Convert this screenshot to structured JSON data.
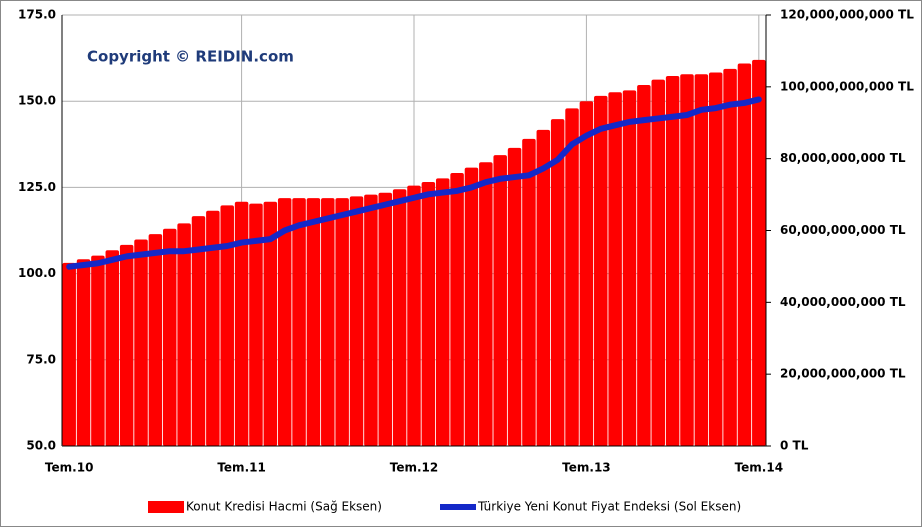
{
  "chart_data": {
    "type": "bar",
    "annotation": "Copyright © REIDIN.com",
    "categories": [
      "Tem.10",
      null,
      null,
      null,
      null,
      null,
      null,
      null,
      null,
      null,
      null,
      null,
      "Tem.11",
      null,
      null,
      null,
      null,
      null,
      null,
      null,
      null,
      null,
      null,
      null,
      "Tem.12",
      null,
      null,
      null,
      null,
      null,
      null,
      null,
      null,
      null,
      null,
      null,
      "Tem.13",
      null,
      null,
      null,
      null,
      null,
      null,
      null,
      null,
      null,
      null,
      null,
      "Tem.14"
    ],
    "series": [
      {
        "name": "Konut Kredisi Hacmi (Sağ Eksen)",
        "type": "bar",
        "axis": "y2",
        "color": "#ff0000",
        "values": [
          51000000000,
          52000000000,
          53000000000,
          54500000000,
          56000000000,
          57500000000,
          59000000000,
          60500000000,
          62000000000,
          64000000000,
          65500000000,
          67000000000,
          68000000000,
          67500000000,
          68000000000,
          69000000000,
          69000000000,
          69000000000,
          69000000000,
          69000000000,
          69500000000,
          70000000000,
          70500000000,
          71500000000,
          72500000000,
          73500000000,
          74500000000,
          76000000000,
          77500000000,
          79000000000,
          81000000000,
          83000000000,
          85500000000,
          88000000000,
          91000000000,
          94000000000,
          96000000000,
          97500000000,
          98500000000,
          99000000000,
          100500000000,
          102000000000,
          103000000000,
          103500000000,
          103500000000,
          104000000000,
          105000000000,
          106500000000,
          107500000000
        ]
      },
      {
        "name": "Türkiye Yeni Konut Fiyat Endeksi (Sol Eksen)",
        "type": "line",
        "color": "#1428c8",
        "values": [
          102,
          102.5,
          103,
          104,
          105,
          105.5,
          106,
          106.5,
          106.5,
          107,
          107.5,
          108,
          109,
          109.5,
          110,
          112.5,
          114,
          115,
          116,
          117,
          118,
          119,
          120,
          121,
          122,
          123,
          123.5,
          124,
          125,
          126.5,
          127.5,
          128,
          128.5,
          130.5,
          133,
          137.5,
          140,
          142,
          143,
          144,
          144.5,
          145,
          145.5,
          146,
          147.5,
          148,
          149,
          149.5,
          150.5
        ]
      }
    ],
    "ylim": [
      50,
      175
    ],
    "yticks": [
      {
        "value": 50,
        "label": "50.0"
      },
      {
        "value": 75,
        "label": "75.0"
      },
      {
        "value": 100,
        "label": "100.0"
      },
      {
        "value": 125,
        "label": "125.0"
      },
      {
        "value": 150,
        "label": "150.0"
      },
      {
        "value": 175,
        "label": "175.0"
      }
    ],
    "y2lim": [
      0,
      120000000000
    ],
    "y2ticks": [
      {
        "value": 0,
        "label": "0 TL"
      },
      {
        "value": 20000000000,
        "label": "20,000,000,000 TL"
      },
      {
        "value": 40000000000,
        "label": "40,000,000,000 TL"
      },
      {
        "value": 60000000000,
        "label": "60,000,000,000 TL"
      },
      {
        "value": 80000000000,
        "label": "80,000,000,000 TL"
      },
      {
        "value": 100000000000,
        "label": "100,000,000,000 TL"
      },
      {
        "value": 120000000000,
        "label": "120,000,000,000 TL"
      }
    ],
    "grid": true,
    "legend": "bottom"
  }
}
